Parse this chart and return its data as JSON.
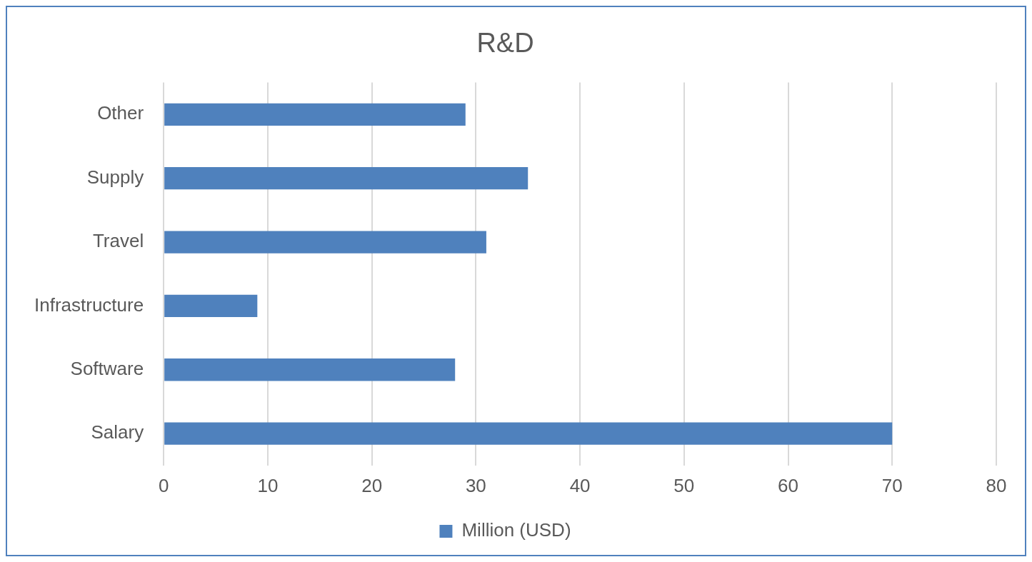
{
  "chart_data": {
    "type": "bar",
    "title": "R&D",
    "orientation": "horizontal",
    "categories": [
      "Other",
      "Supply",
      "Travel",
      "Infrastructure",
      "Software",
      "Salary"
    ],
    "series": [
      {
        "name": "Million (USD)",
        "color": "#4f81bd",
        "values": [
          29,
          35,
          31,
          9,
          28,
          70
        ]
      }
    ],
    "xlim": [
      0,
      80
    ],
    "xticks": [
      0,
      10,
      20,
      30,
      40,
      50,
      60,
      70,
      80
    ],
    "grid": "x",
    "legend": "bottom"
  }
}
